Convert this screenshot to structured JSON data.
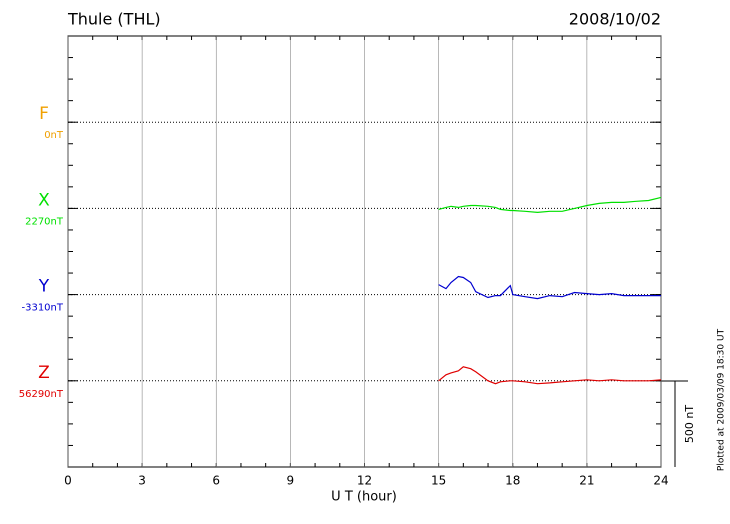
{
  "chart_data": {
    "type": "line",
    "title": "Thule (THL)",
    "date": "2008/10/02",
    "x_label": "U T (hour)",
    "xlim": [
      0,
      24
    ],
    "xticks": [
      0,
      3,
      6,
      9,
      12,
      15,
      18,
      21,
      24
    ],
    "x": [
      15,
      15.3,
      15.5,
      15.8,
      16,
      16.3,
      16.5,
      17,
      17.3,
      17.5,
      17.9,
      18,
      18.5,
      19,
      19.5,
      20,
      20.5,
      21,
      21.5,
      22,
      22.5,
      23,
      23.5,
      24
    ],
    "scale_nT": 500,
    "scale_label": "500 nT",
    "footnote": "Plotted at 2009/03/09 18:30 UT",
    "series": [
      {
        "name": "F",
        "color": "#f0a000",
        "baseline": 0,
        "baseline_label": "0nT",
        "values": [
          null,
          null,
          null,
          null,
          null,
          null,
          null,
          null,
          null,
          null,
          null,
          null,
          null,
          null,
          null,
          null,
          null,
          null,
          null,
          null,
          null,
          null,
          null,
          null
        ]
      },
      {
        "name": "X",
        "color": "#00e000",
        "baseline": 2270,
        "baseline_label": "2270nT",
        "values": [
          2264,
          2276,
          2282,
          2276,
          2282,
          2287,
          2287,
          2282,
          2276,
          2264,
          2258,
          2258,
          2253,
          2247,
          2253,
          2253,
          2270,
          2287,
          2299,
          2305,
          2305,
          2311,
          2316,
          2334
        ]
      },
      {
        "name": "Y",
        "color": "#0000d0",
        "baseline": -3310,
        "baseline_label": "-3310nT",
        "values": [
          -3252,
          -3275,
          -3240,
          -3205,
          -3211,
          -3240,
          -3293,
          -3327,
          -3316,
          -3316,
          -3258,
          -3310,
          -3322,
          -3333,
          -3316,
          -3322,
          -3298,
          -3304,
          -3310,
          -3304,
          -3316,
          -3316,
          -3316,
          -3316
        ]
      },
      {
        "name": "Z",
        "color": "#e00000",
        "baseline": 56290,
        "baseline_label": "56290nT",
        "values": [
          56290,
          56325,
          56336,
          56348,
          56371,
          56360,
          56342,
          56290,
          56273,
          56284,
          56290,
          56290,
          56284,
          56273,
          56278,
          56284,
          56290,
          56296,
          56290,
          56296,
          56290,
          56290,
          56290,
          56296
        ]
      }
    ]
  }
}
